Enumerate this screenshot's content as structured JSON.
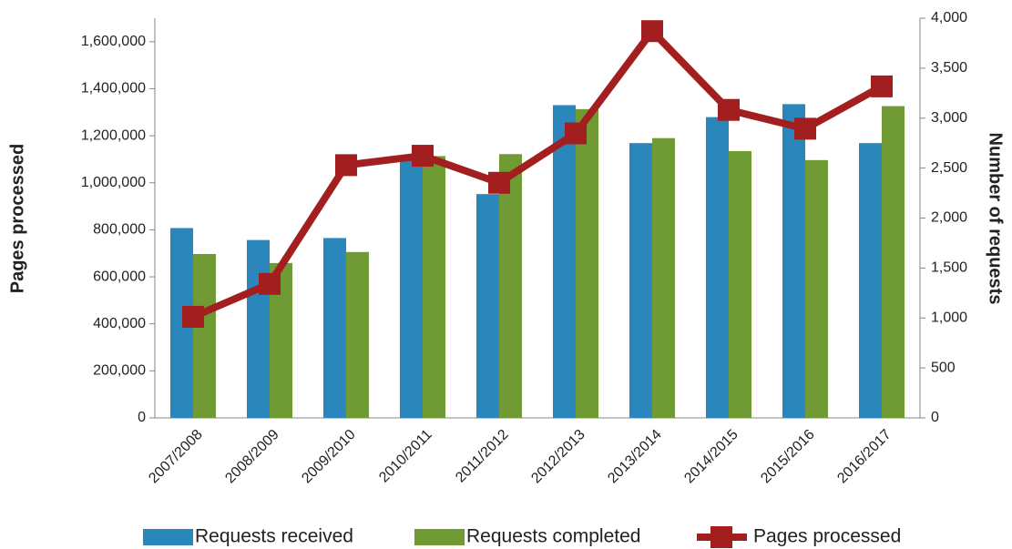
{
  "chart_data": {
    "type": "bar-line",
    "y_label": "Pages processed",
    "y2_label": "Number of requests",
    "categories": [
      "2007/2008",
      "2008/2009",
      "2009/2010",
      "2010/2011",
      "2011/2012",
      "2012/2013",
      "2013/2014",
      "2014/2015",
      "2015/2016",
      "2016/2017"
    ],
    "series": [
      {
        "name": "Requests received",
        "color": "#2a86bb",
        "type": "bar",
        "axis": "y2",
        "values": [
          1900,
          1780,
          1800,
          2580,
          2240,
          3130,
          2750,
          3010,
          3140,
          2750
        ]
      },
      {
        "name": "Requests completed",
        "color": "#6f9a34",
        "type": "bar",
        "axis": "y2",
        "values": [
          1640,
          1550,
          1660,
          2620,
          2640,
          3090,
          2800,
          2670,
          2580,
          3120
        ]
      },
      {
        "name": "Pages processed",
        "color": "#a31f1f",
        "type": "line",
        "axis": "y",
        "values": [
          430000,
          570000,
          1075000,
          1115000,
          1000000,
          1210000,
          1645000,
          1310000,
          1230000,
          1410000
        ]
      }
    ],
    "ylim": [
      0,
      1700000
    ],
    "yticks": [
      0,
      {
        "value": 200000,
        "label": "200,000"
      },
      {
        "value": 400000,
        "label": "400,000"
      },
      {
        "value": 600000,
        "label": "600,000"
      },
      {
        "value": 800000,
        "label": "800,000"
      },
      {
        "value": 1000000,
        "label": "1,000,000"
      },
      {
        "value": 1200000,
        "label": "1,200,000"
      },
      {
        "value": 1400000,
        "label": "1,400,000"
      },
      {
        "value": 1600000,
        "label": "1,600,000"
      }
    ],
    "y2lim": [
      0,
      4000
    ],
    "y2ticks": [
      0,
      500,
      {
        "value": 1000,
        "label": "1,000"
      },
      {
        "value": 1500,
        "label": "1,500"
      },
      {
        "value": 2000,
        "label": "2,000"
      },
      {
        "value": 2500,
        "label": "2,500"
      },
      {
        "value": 3000,
        "label": "3,000"
      },
      {
        "value": 3500,
        "label": "3,500"
      },
      {
        "value": 4000,
        "label": "4,000"
      }
    ]
  }
}
